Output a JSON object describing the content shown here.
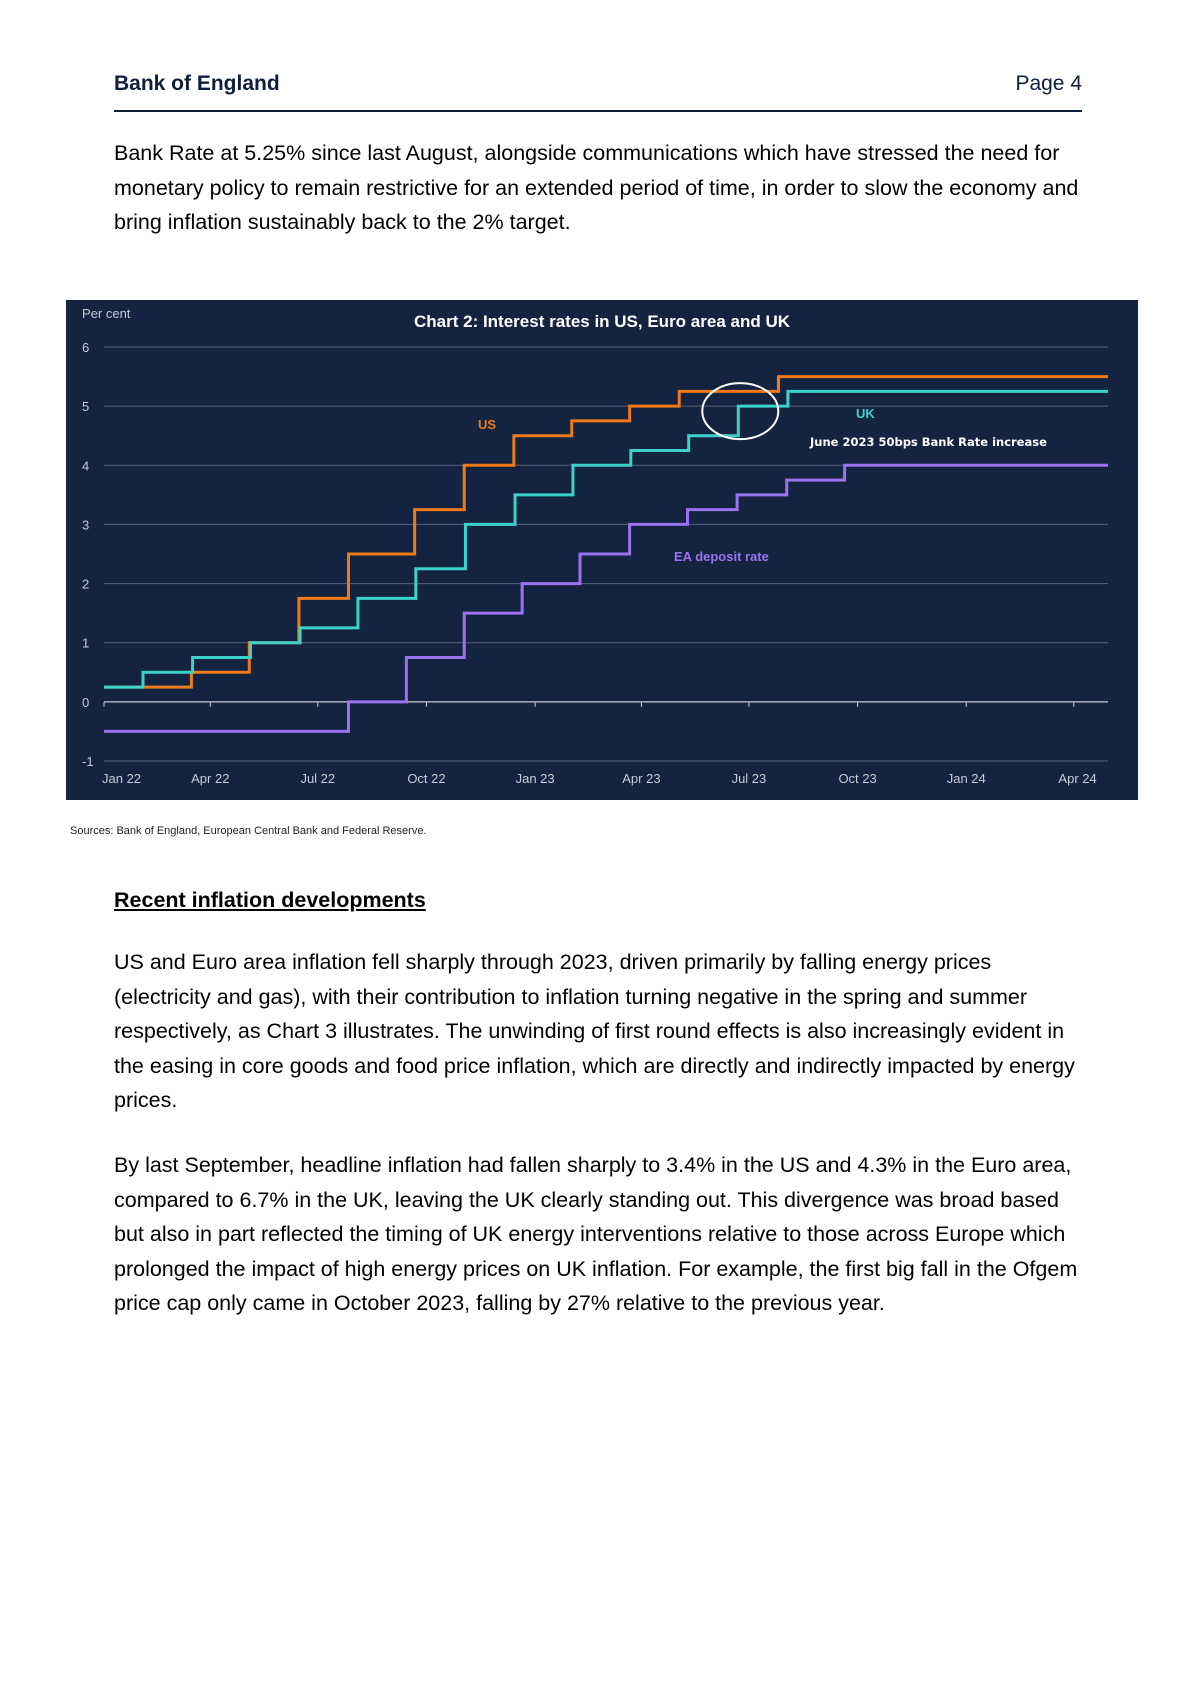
{
  "header": {
    "org": "Bank of England",
    "page": "Page 4"
  },
  "paragraphs": {
    "p1": "Bank Rate at 5.25% since last August, alongside communications which have stressed the need for monetary policy to remain restrictive for an extended period of time, in order to slow the economy and bring inflation sustainably back to the 2% target.",
    "p2": "US and Euro area inflation fell sharply through 2023, driven primarily by falling energy prices (electricity and gas), with their contribution to inflation turning negative in the spring and summer respectively, as Chart 3 illustrates. The unwinding of first round effects is also increasingly evident in the easing in core goods and food price inflation, which are directly and indirectly impacted by energy prices.",
    "p3": "By last September, headline inflation had fallen sharply to 3.4% in the US and 4.3% in the Euro area, compared to 6.7% in the UK, leaving the UK clearly standing out.  This divergence was broad based but also in part reflected the timing of UK energy interventions relative to those across Europe which prolonged the impact of high energy prices on UK inflation. For example, the first big fall in the Ofgem price cap only came in October 2023, falling by 27% relative to the previous year."
  },
  "section_heading": "Recent inflation developments",
  "source_note": "Sources: Bank of England,  European Central Bank and Federal Reserve.",
  "chart_data": {
    "type": "line",
    "title": "Chart 2: Interest rates in US, Euro area and UK",
    "ylabel": "Per cent",
    "xlabel": "",
    "ylim": [
      -1,
      6
    ],
    "yticks": [
      -1,
      0,
      1,
      2,
      3,
      4,
      5,
      6
    ],
    "xlim": [
      "2022-01-01",
      "2024-04-30"
    ],
    "xtick_labels": [
      "Jan 22",
      "Apr 22",
      "Jul 22",
      "Oct 22",
      "Jan 23",
      "Apr 23",
      "Jul 23",
      "Oct 23",
      "Jan 24",
      "Apr 24"
    ],
    "xtick_dates": [
      "2022-01-01",
      "2022-04-01",
      "2022-07-01",
      "2022-10-01",
      "2023-01-01",
      "2023-04-01",
      "2023-07-01",
      "2023-10-01",
      "2024-01-01",
      "2024-04-01"
    ],
    "grid": true,
    "step": true,
    "series": [
      {
        "name": "US",
        "color": "#f07a1a",
        "x": [
          "2022-01-01",
          "2022-03-16",
          "2022-05-04",
          "2022-06-15",
          "2022-07-27",
          "2022-09-21",
          "2022-11-02",
          "2022-12-14",
          "2023-02-01",
          "2023-03-22",
          "2023-05-03",
          "2023-07-26",
          "2024-04-30"
        ],
        "y": [
          0.25,
          0.5,
          1.0,
          1.75,
          2.5,
          3.25,
          4.0,
          4.5,
          4.75,
          5.0,
          5.25,
          5.5,
          5.5
        ]
      },
      {
        "name": "UK",
        "color": "#3cd2cc",
        "x": [
          "2022-01-01",
          "2022-02-03",
          "2022-03-17",
          "2022-05-05",
          "2022-06-16",
          "2022-08-04",
          "2022-09-22",
          "2022-11-03",
          "2022-12-15",
          "2023-02-02",
          "2023-03-23",
          "2023-05-11",
          "2023-06-22",
          "2023-08-03",
          "2024-04-30"
        ],
        "y": [
          0.25,
          0.5,
          0.75,
          1.0,
          1.25,
          1.75,
          2.25,
          3.0,
          3.5,
          4.0,
          4.25,
          4.5,
          5.0,
          5.25,
          5.25
        ]
      },
      {
        "name": "EA deposit rate",
        "color": "#9b72f0",
        "x": [
          "2022-01-01",
          "2022-07-27",
          "2022-09-14",
          "2022-11-02",
          "2022-12-21",
          "2023-02-08",
          "2023-03-22",
          "2023-05-10",
          "2023-06-21",
          "2023-08-02",
          "2023-09-20",
          "2024-04-30"
        ],
        "y": [
          -0.5,
          0.0,
          0.75,
          1.5,
          2.0,
          2.5,
          3.0,
          3.25,
          3.5,
          3.75,
          4.0,
          4.0
        ]
      }
    ],
    "annotations": [
      {
        "text": "June 2023 50bps Bank Rate increase",
        "x": "2023-06-22",
        "y": 5.0,
        "marker": "circle"
      }
    ]
  }
}
